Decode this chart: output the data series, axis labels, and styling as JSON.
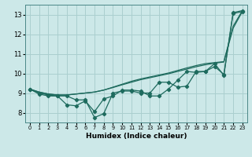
{
  "x": [
    0,
    1,
    2,
    3,
    4,
    5,
    6,
    7,
    8,
    9,
    10,
    11,
    12,
    13,
    14,
    15,
    16,
    17,
    18,
    19,
    20,
    21,
    22,
    23
  ],
  "line_smooth1": [
    9.2,
    9.05,
    8.95,
    8.9,
    8.9,
    8.95,
    9.0,
    9.05,
    9.15,
    9.3,
    9.45,
    9.6,
    9.72,
    9.82,
    9.92,
    10.02,
    10.15,
    10.28,
    10.4,
    10.5,
    10.55,
    10.6,
    12.4,
    13.2
  ],
  "line_smooth2": [
    9.2,
    9.05,
    8.95,
    8.9,
    8.9,
    8.95,
    9.0,
    9.05,
    9.15,
    9.28,
    9.42,
    9.55,
    9.68,
    9.78,
    9.88,
    9.98,
    10.1,
    10.22,
    10.34,
    10.44,
    10.52,
    10.58,
    12.3,
    13.15
  ],
  "line_data1": [
    9.2,
    9.0,
    8.9,
    8.85,
    8.85,
    8.65,
    8.65,
    7.75,
    7.95,
    9.0,
    9.1,
    9.1,
    9.0,
    9.0,
    9.55,
    9.55,
    9.3,
    9.35,
    10.1,
    10.1,
    10.5,
    9.9,
    13.1,
    13.2
  ],
  "line_data2": [
    9.2,
    8.95,
    8.85,
    8.85,
    8.4,
    8.35,
    8.6,
    8.05,
    8.7,
    8.85,
    9.15,
    9.15,
    9.1,
    8.85,
    8.85,
    9.2,
    9.65,
    10.1,
    10.05,
    10.1,
    10.35,
    9.95,
    13.05,
    13.15
  ],
  "bg_color": "#cce8e8",
  "grid_color": "#aacfcf",
  "line_color": "#1e6b5e",
  "xlabel": "Humidex (Indice chaleur)",
  "xlim": [
    -0.5,
    23.5
  ],
  "ylim": [
    7.5,
    13.5
  ],
  "yticks": [
    8,
    9,
    10,
    11,
    12,
    13
  ],
  "xticks": [
    0,
    1,
    2,
    3,
    4,
    5,
    6,
    7,
    8,
    9,
    10,
    11,
    12,
    13,
    14,
    15,
    16,
    17,
    18,
    19,
    20,
    21,
    22,
    23
  ],
  "markersize": 2.2,
  "linewidth": 0.9,
  "smooth_linewidth": 0.9
}
